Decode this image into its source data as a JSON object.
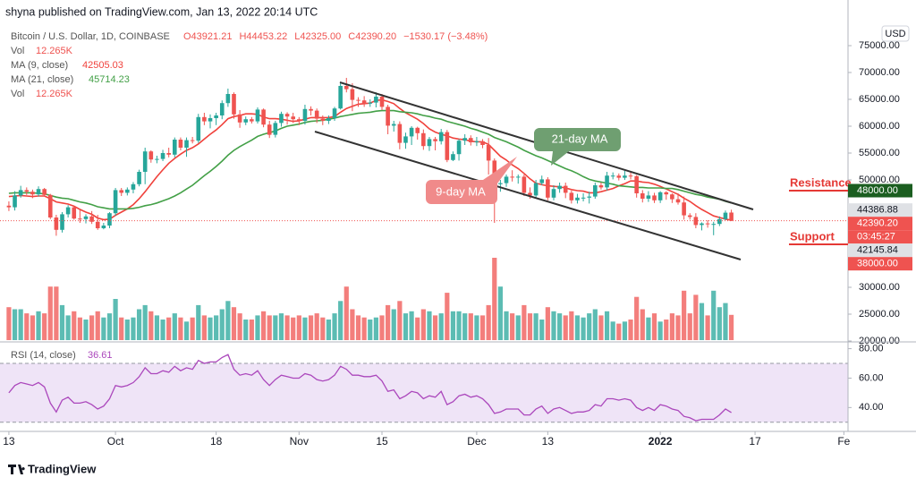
{
  "chart_data": {
    "type": "candlestick",
    "header": "shyna published on TradingView.com, Jan 13, 2022 20:14 UTC",
    "symbol": "Bitcoin / U.S. Dollar, 1D, COINBASE",
    "ohlc_text": [
      "O43921.21",
      "H44453.22",
      "L42325.00",
      "C42390.20",
      "−1530.17 (−3.48%)"
    ],
    "currency": "USD",
    "footer": "TradingView",
    "up_color": "#26a69a",
    "down_color": "#ef5350",
    "xlim": [
      -1.5,
      141.7
    ],
    "xticks": [
      {
        "value": 0,
        "label": "13"
      },
      {
        "value": 18,
        "label": "Oct"
      },
      {
        "value": 35,
        "label": "18"
      },
      {
        "value": 49,
        "label": "Nov"
      },
      {
        "value": 63,
        "label": "15"
      },
      {
        "value": 79,
        "label": "Dec"
      },
      {
        "value": 91,
        "label": "13"
      },
      {
        "value": 110,
        "label": "2022"
      },
      {
        "value": 126,
        "label": "17"
      },
      {
        "value": 141,
        "label": "Fe"
      }
    ],
    "ylim": [
      20000,
      78500
    ],
    "yticks": [
      {
        "value": 75000,
        "label": "75000.00"
      },
      {
        "value": 70000,
        "label": "70000.00"
      },
      {
        "value": 65000,
        "label": "65000.00"
      },
      {
        "value": 60000,
        "label": "60000.00"
      },
      {
        "value": 55000,
        "label": "55000.00"
      },
      {
        "value": 50000,
        "label": "50000.00"
      },
      {
        "value": 30000,
        "label": "30000.00"
      },
      {
        "value": 25000,
        "label": "25000.00"
      },
      {
        "value": 20000,
        "label": "20000.00"
      }
    ],
    "open": [
      45200,
      44900,
      47100,
      48100,
      47800,
      47300,
      48300,
      47200,
      43000,
      40700,
      43600,
      44900,
      42800,
      42700,
      43200,
      42200,
      41000,
      41500,
      43800,
      48100,
      47600,
      48200,
      49200,
      51500,
      55300,
      53800,
      53900,
      55000,
      54700,
      57500,
      56000,
      57400,
      57300,
      61700,
      60900,
      61500,
      62000,
      64300,
      66000,
      62200,
      60700,
      61300,
      60900,
      63100,
      60300,
      58400,
      60600,
      62300,
      61800,
      61300,
      61000,
      63200,
      62900,
      61400,
      61000,
      61500,
      63300,
      67500,
      66900,
      64900,
      64800,
      64200,
      64400,
      65500,
      63600,
      60100,
      60400,
      56900,
      58100,
      59700,
      58700,
      56300,
      57600,
      57200,
      58900,
      53700,
      54800,
      57300,
      57800,
      57000,
      57200,
      56500,
      53600,
      49200,
      49400,
      50600,
      50500,
      50600,
      47600,
      47100,
      49400,
      50100,
      46700,
      48300,
      48900,
      47600,
      46200,
      46700,
      46700,
      46900,
      49000,
      48600,
      50800,
      50800,
      50400,
      50800,
      50700,
      47500,
      46500,
      47100,
      46200,
      47700,
      47300,
      46400,
      45800,
      43400,
      43100,
      41600,
      41900,
      41800,
      41800,
      42700,
      43921.21
    ],
    "high": [
      46000,
      47900,
      48900,
      48600,
      48200,
      48800,
      48500,
      47400,
      43500,
      44000,
      45300,
      45100,
      44500,
      43600,
      44200,
      43500,
      42000,
      44000,
      48500,
      48500,
      48600,
      49600,
      51900,
      56000,
      55500,
      54500,
      55600,
      56000,
      57900,
      57900,
      57900,
      58000,
      62300,
      62500,
      62200,
      62500,
      64800,
      67000,
      66300,
      63000,
      61800,
      61700,
      63500,
      63300,
      61000,
      61000,
      62700,
      62600,
      62500,
      61700,
      64000,
      63700,
      63300,
      62000,
      62000,
      63600,
      68000,
      69000,
      68000,
      65400,
      65600,
      65000,
      66300,
      66000,
      64000,
      61000,
      60900,
      58800,
      60000,
      59900,
      59400,
      58000,
      58000,
      59500,
      59300,
      55300,
      57600,
      58500,
      58300,
      58000,
      57600,
      57800,
      54000,
      50000,
      51000,
      51800,
      51000,
      51000,
      48600,
      50000,
      50800,
      50500,
      49000,
      49500,
      49500,
      48000,
      47400,
      47500,
      47800,
      49500,
      49500,
      51500,
      51400,
      51200,
      51700,
      51500,
      50900,
      48100,
      47900,
      47600,
      47900,
      47900,
      47500,
      47500,
      46900,
      43800,
      43800,
      42100,
      42500,
      42200,
      43200,
      44300,
      44453.22
    ],
    "low": [
      44200,
      44300,
      46700,
      47200,
      46600,
      46900,
      46900,
      42700,
      39600,
      40200,
      43000,
      42600,
      42000,
      41900,
      41800,
      40700,
      40800,
      41000,
      43300,
      47000,
      47100,
      47500,
      48800,
      49200,
      53200,
      53100,
      53500,
      54200,
      54200,
      55500,
      54300,
      56800,
      56900,
      60200,
      59600,
      60200,
      61300,
      63600,
      61400,
      59700,
      60200,
      60500,
      60500,
      59800,
      57800,
      57900,
      59900,
      60300,
      60600,
      60200,
      60300,
      62000,
      60600,
      60200,
      60400,
      61000,
      63100,
      66300,
      62800,
      63600,
      63600,
      63600,
      63500,
      63000,
      58500,
      59000,
      55700,
      55800,
      56500,
      57500,
      55600,
      55400,
      55500,
      56600,
      53300,
      53500,
      53600,
      56500,
      56400,
      56300,
      55900,
      51000,
      42000,
      47800,
      48700,
      49700,
      49300,
      47000,
      46500,
      46600,
      49000,
      46200,
      46200,
      47600,
      46600,
      45600,
      45600,
      46000,
      45600,
      46500,
      48200,
      48000,
      50100,
      49900,
      50000,
      50100,
      46700,
      45800,
      45900,
      45700,
      45700,
      46300,
      45700,
      45400,
      42600,
      42600,
      41000,
      40600,
      41100,
      39700,
      41400,
      42500,
      42325
    ],
    "close": [
      44900,
      47100,
      48100,
      47800,
      47300,
      48300,
      47200,
      43000,
      40700,
      43600,
      44900,
      42800,
      42700,
      43200,
      42200,
      41000,
      41500,
      43800,
      48100,
      47600,
      48200,
      49200,
      51500,
      55300,
      53800,
      53900,
      55000,
      54700,
      57500,
      56000,
      57400,
      57300,
      61700,
      60900,
      61500,
      62000,
      64300,
      66000,
      62200,
      60700,
      61300,
      60900,
      63100,
      60300,
      58400,
      60600,
      62300,
      61800,
      61300,
      61000,
      63200,
      62900,
      61400,
      61000,
      61500,
      63300,
      67500,
      66900,
      64900,
      64800,
      64200,
      64400,
      65500,
      63600,
      60100,
      60400,
      56900,
      58100,
      59700,
      58700,
      56300,
      57600,
      57200,
      58900,
      53700,
      54800,
      57300,
      57800,
      57000,
      57200,
      56500,
      53600,
      49200,
      49400,
      50600,
      50500,
      50600,
      47600,
      47100,
      49400,
      50100,
      46700,
      48300,
      48900,
      47600,
      46200,
      46700,
      46700,
      46900,
      49000,
      48600,
      50800,
      50800,
      50400,
      50800,
      50700,
      47500,
      46500,
      47100,
      46200,
      47700,
      47300,
      46400,
      45800,
      43400,
      43100,
      41600,
      41900,
      41800,
      41800,
      42700,
      43900,
      42390.2
    ],
    "series": [
      {
        "name": "MA (9, close)",
        "last_label": "42505.03",
        "color": "#f0423c",
        "values": [
          46900,
          47000,
          47100,
          47000,
          46900,
          47000,
          47000,
          46500,
          45900,
          45700,
          45500,
          45100,
          44500,
          44000,
          43600,
          42900,
          42600,
          42700,
          43400,
          44000,
          44600,
          45400,
          46500,
          47800,
          49200,
          50600,
          51900,
          53100,
          54000,
          54800,
          55500,
          56000,
          56700,
          57600,
          58500,
          59300,
          60300,
          61400,
          61800,
          62000,
          62300,
          62300,
          62200,
          61700,
          61400,
          61400,
          61300,
          61100,
          60900,
          61000,
          61300,
          61600,
          61600,
          61600,
          61600,
          61800,
          62600,
          63300,
          63700,
          64100,
          64200,
          64300,
          64800,
          64900,
          64600,
          64200,
          63300,
          62500,
          61900,
          61300,
          60500,
          59500,
          58900,
          58500,
          58200,
          57800,
          57600,
          57500,
          57200,
          57100,
          57100,
          56600,
          55500,
          54400,
          53700,
          52800,
          52100,
          51200,
          50200,
          49400,
          49100,
          48900,
          48800,
          48700,
          48500,
          48200,
          48000,
          47900,
          47600,
          47600,
          47800,
          48100,
          48400,
          48900,
          49300,
          49800,
          49800,
          49600,
          49500,
          49200,
          48800,
          48300,
          47800,
          47300,
          46600,
          46000,
          45200,
          44500,
          43900,
          43300,
          43000,
          42700,
          42505.03
        ]
      },
      {
        "name": "MA (21, close)",
        "last_label": "45714.23",
        "color": "#43a047",
        "values": [
          47500,
          47600,
          47600,
          47600,
          47600,
          47500,
          47400,
          47100,
          46800,
          46600,
          46500,
          46200,
          45900,
          45700,
          45400,
          45000,
          44800,
          44600,
          44600,
          44600,
          44600,
          44700,
          44900,
          45200,
          45400,
          45700,
          46100,
          46500,
          47000,
          47600,
          48300,
          49000,
          49900,
          50800,
          51600,
          52500,
          53500,
          54600,
          55500,
          56200,
          56800,
          57400,
          58100,
          58500,
          58800,
          59100,
          59600,
          60000,
          60200,
          60400,
          60700,
          60900,
          61000,
          61100,
          61300,
          61500,
          61800,
          62000,
          62200,
          62400,
          62500,
          62600,
          62800,
          62900,
          62900,
          62900,
          62700,
          62600,
          62500,
          62300,
          62000,
          61800,
          61500,
          61300,
          60900,
          60600,
          60300,
          60000,
          59600,
          59300,
          58900,
          58500,
          57900,
          57500,
          57100,
          56600,
          56100,
          55500,
          55000,
          54500,
          54100,
          53600,
          53100,
          52600,
          52100,
          51700,
          51200,
          50600,
          50100,
          49800,
          49600,
          49400,
          49200,
          48900,
          48800,
          48700,
          48600,
          48600,
          48500,
          48500,
          48500,
          48400,
          48400,
          48200,
          47900,
          47600,
          47300,
          47100,
          46800,
          46600,
          46400,
          46000,
          45714.23
        ]
      }
    ],
    "volume": {
      "name": "Vol",
      "last_label": "12.265K",
      "values": [
        16,
        15,
        15,
        13,
        12,
        14,
        13,
        26,
        26,
        17,
        12,
        14,
        11,
        10,
        12,
        14,
        11,
        13,
        20,
        11,
        10,
        11,
        15,
        17,
        14,
        12,
        10,
        11,
        13,
        11,
        9,
        11,
        17,
        12,
        11,
        12,
        15,
        19,
        16,
        13,
        10,
        10,
        12,
        14,
        12,
        12,
        13,
        12,
        11,
        12,
        11,
        12,
        13,
        11,
        10,
        13,
        19,
        26,
        15,
        12,
        11,
        10,
        11,
        12,
        17,
        15,
        19,
        13,
        14,
        11,
        15,
        14,
        12,
        13,
        23,
        14,
        14,
        13,
        13,
        12,
        12,
        17,
        40,
        26,
        14,
        13,
        12,
        17,
        13,
        13,
        10,
        16,
        14,
        13,
        12,
        14,
        12,
        11,
        13,
        15,
        12,
        14,
        9,
        8,
        9,
        10,
        21,
        15,
        11,
        13,
        9,
        10,
        13,
        12,
        24,
        13,
        22,
        18,
        12,
        24,
        16,
        18,
        12.265
      ]
    },
    "rsi": {
      "name": "RSI (14, close)",
      "last_label": "36.61",
      "color": "#ab47bc",
      "band_color": "#efe4f7",
      "bands": [
        30,
        70
      ],
      "ylim": [
        25,
        84
      ],
      "yticks": [
        {
          "value": 80,
          "label": "80.00"
        },
        {
          "value": 60,
          "label": "60.00"
        },
        {
          "value": 40,
          "label": "40.00"
        }
      ],
      "values": [
        50,
        55,
        57,
        56,
        55,
        57,
        54,
        43,
        37,
        45,
        47,
        43,
        43,
        44,
        42,
        39,
        41,
        46,
        55,
        54,
        55,
        57,
        61,
        67,
        63,
        63,
        65,
        64,
        68,
        65,
        67,
        66,
        72,
        70,
        71,
        71,
        74,
        76,
        66,
        62,
        63,
        62,
        65,
        59,
        55,
        59,
        62,
        61,
        60,
        60,
        63,
        62,
        59,
        58,
        59,
        62,
        68,
        66,
        62,
        62,
        61,
        61,
        62,
        58,
        51,
        52,
        46,
        48,
        51,
        50,
        46,
        48,
        47,
        51,
        42,
        44,
        48,
        49,
        47,
        48,
        46,
        42,
        36,
        37,
        39,
        39,
        39,
        35,
        35,
        39,
        41,
        36,
        39,
        40,
        38,
        36,
        37,
        37,
        38,
        42,
        41,
        46,
        46,
        45,
        46,
        45,
        40,
        38,
        40,
        38,
        42,
        41,
        39,
        38,
        34,
        33,
        31,
        32,
        32,
        32,
        35,
        39,
        36.61
      ]
    },
    "price_labels": [
      {
        "value": 48000,
        "label": "48000.00",
        "color": "#1b5e20"
      },
      {
        "value": 44386.88,
        "label": "44386.88",
        "color": "#dfe1e5"
      },
      {
        "value": 42390.2,
        "label": "42390.20",
        "color": "#ef5350"
      },
      {
        "label": "03:45:27",
        "color": "#ef5350"
      },
      {
        "value": 42145.84,
        "label": "42145.84",
        "color": "#dfe1e5"
      },
      {
        "value": 38000,
        "label": "38000.00",
        "color": "#ef5350"
      }
    ],
    "levels": [
      {
        "text": "Resistance",
        "value": 48000,
        "color": "#e53935"
      },
      {
        "text": "Support",
        "value": 38000,
        "color": "#e53935"
      }
    ],
    "callouts": [
      {
        "text": "21-day MA",
        "color": "#6f9f71"
      },
      {
        "text": "9-day MA",
        "color": "#f08a8a"
      }
    ]
  }
}
